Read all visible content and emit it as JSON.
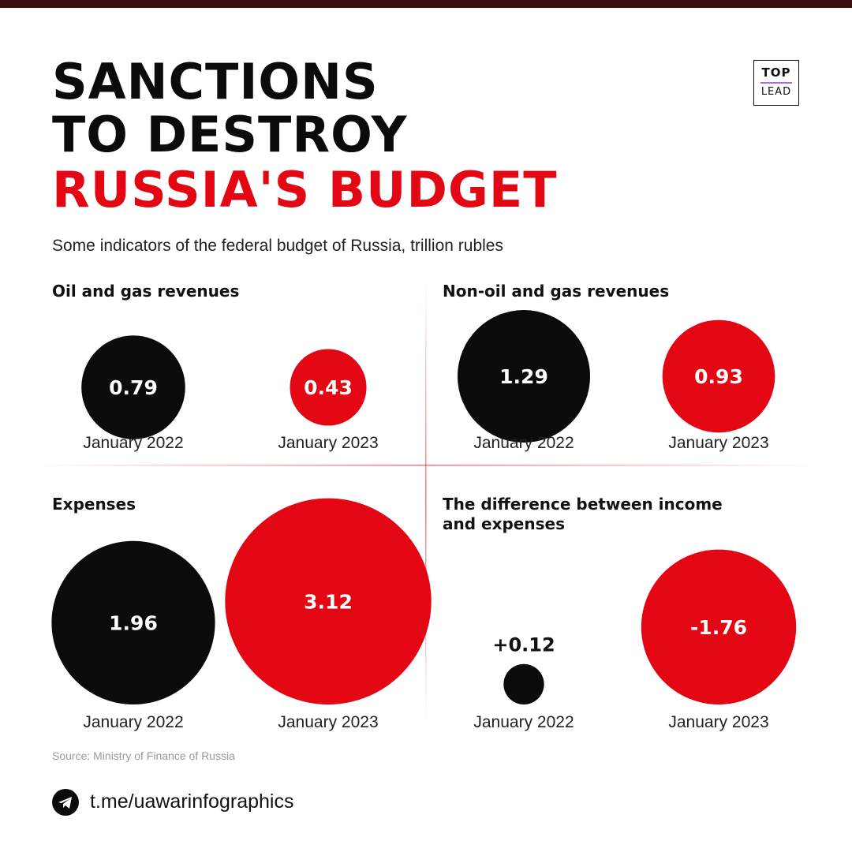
{
  "header": {
    "title_line1": "SANCTIONS",
    "title_line2": "TO DESTROY",
    "title_line3": "RUSSIA'S BUDGET",
    "subtitle": "Some indicators of the federal budget of Russia, trillion rubles"
  },
  "logo": {
    "top": "TOP",
    "bottom": "LEAD",
    "accent_color": "#b06bd8"
  },
  "colors": {
    "black": "#0b0b0b",
    "red": "#e30613",
    "topbar": "#3b0f10",
    "divider": "#e30613"
  },
  "chart_data": [
    {
      "type": "bubble",
      "title": "Oil and gas revenues",
      "categories": [
        "January 2022",
        "January 2023"
      ],
      "values": [
        0.79,
        0.43
      ],
      "labels": [
        "0.79",
        "0.43"
      ],
      "colors": [
        "#0b0b0b",
        "#e30613"
      ]
    },
    {
      "type": "bubble",
      "title": "Non-oil and gas revenues",
      "categories": [
        "January 2022",
        "January 2023"
      ],
      "values": [
        1.29,
        0.93
      ],
      "labels": [
        "1.29",
        "0.93"
      ],
      "colors": [
        "#0b0b0b",
        "#e30613"
      ]
    },
    {
      "type": "bubble",
      "title": "Expenses",
      "categories": [
        "January 2022",
        "January 2023"
      ],
      "values": [
        1.96,
        3.12
      ],
      "labels": [
        "1.96",
        "3.12"
      ],
      "colors": [
        "#0b0b0b",
        "#e30613"
      ]
    },
    {
      "type": "bubble",
      "title": "The difference between income and expenses",
      "categories": [
        "January 2022",
        "January 2023"
      ],
      "values": [
        0.12,
        -1.76
      ],
      "labels": [
        "+0.12",
        "-1.76"
      ],
      "colors": [
        "#0b0b0b",
        "#e30613"
      ]
    }
  ],
  "footer": {
    "source": "Source: Ministry of Finance of Russia",
    "link_icon": "telegram-icon",
    "link": "t.me/uawarinfographics"
  }
}
